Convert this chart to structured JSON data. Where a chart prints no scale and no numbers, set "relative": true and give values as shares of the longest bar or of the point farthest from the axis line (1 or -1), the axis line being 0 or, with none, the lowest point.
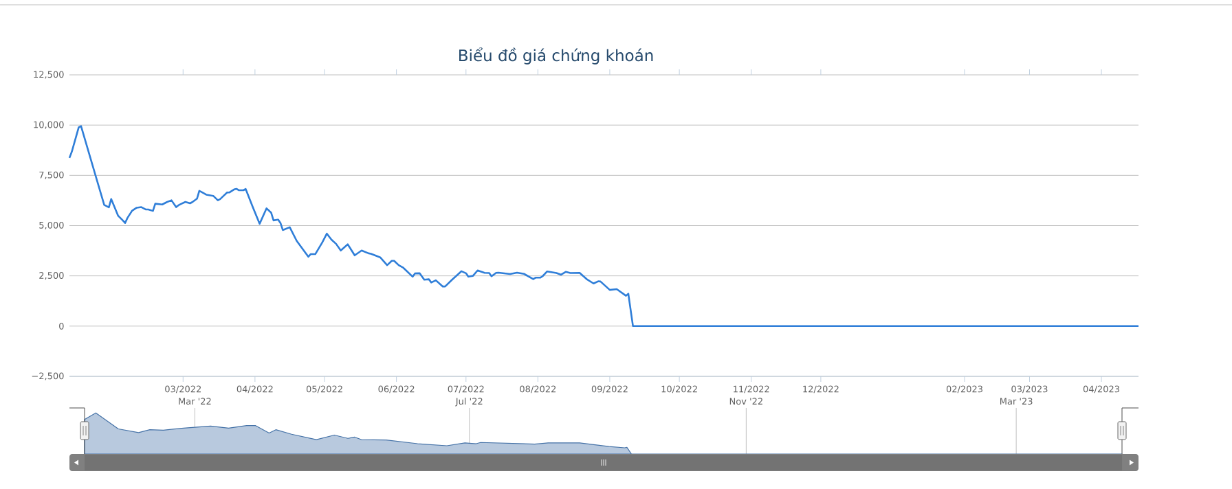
{
  "chart_data": [
    {
      "type": "line",
      "title": "Biểu đồ giá chứng khoán",
      "x": [
        "2022-01-11",
        "2022-01-12",
        "2022-01-15",
        "2022-01-16",
        "2022-01-22",
        "2022-01-26",
        "2022-01-28",
        "2022-01-29",
        "2022-02-01",
        "2022-02-03",
        "2022-02-04",
        "2022-02-05",
        "2022-02-07",
        "2022-02-09",
        "2022-02-11",
        "2022-02-13",
        "2022-02-14",
        "2022-02-16",
        "2022-02-17",
        "2022-02-20",
        "2022-02-22",
        "2022-02-24",
        "2022-02-26",
        "2022-02-27",
        "2022-02-28",
        "2022-03-02",
        "2022-03-04",
        "2022-03-05",
        "2022-03-07",
        "2022-03-08",
        "2022-03-09",
        "2022-03-11",
        "2022-03-14",
        "2022-03-16",
        "2022-03-17",
        "2022-03-18",
        "2022-03-20",
        "2022-03-21",
        "2022-03-23",
        "2022-03-24",
        "2022-03-25",
        "2022-03-27",
        "2022-03-28",
        "2022-03-31",
        "2022-04-03",
        "2022-04-06",
        "2022-04-08",
        "2022-04-09",
        "2022-04-11",
        "2022-04-12",
        "2022-04-13",
        "2022-04-16",
        "2022-04-19",
        "2022-04-24",
        "2022-04-25",
        "2022-04-27",
        "2022-04-30",
        "2022-05-02",
        "2022-05-04",
        "2022-05-06",
        "2022-05-08",
        "2022-05-11",
        "2022-05-14",
        "2022-05-17",
        "2022-05-20",
        "2022-05-21",
        "2022-05-25",
        "2022-05-28",
        "2022-05-30",
        "2022-05-31",
        "2022-06-02",
        "2022-06-04",
        "2022-06-08",
        "2022-06-09",
        "2022-06-11",
        "2022-06-13",
        "2022-06-15",
        "2022-06-16",
        "2022-06-18",
        "2022-06-21",
        "2022-06-22",
        "2022-06-25",
        "2022-06-29",
        "2022-07-01",
        "2022-07-02",
        "2022-07-04",
        "2022-07-06",
        "2022-07-09",
        "2022-07-11",
        "2022-07-12",
        "2022-07-14",
        "2022-07-15",
        "2022-07-20",
        "2022-07-23",
        "2022-07-26",
        "2022-07-30",
        "2022-07-31",
        "2022-08-02",
        "2022-08-03",
        "2022-08-05",
        "2022-08-09",
        "2022-08-11",
        "2022-08-13",
        "2022-08-15",
        "2022-08-19",
        "2022-08-22",
        "2022-08-25",
        "2022-08-27",
        "2022-08-28",
        "2022-09-01",
        "2022-09-04",
        "2022-09-08",
        "2022-09-09",
        "2022-09-11",
        "2023-04-17"
      ],
      "series": [
        {
          "color": "#2f7ed8",
          "values": [
            8370,
            8670,
            9890,
            9950,
            7590,
            6030,
            5910,
            6320,
            5490,
            5260,
            5130,
            5380,
            5740,
            5890,
            5920,
            5800,
            5800,
            5730,
            6090,
            6050,
            6170,
            6260,
            5920,
            6010,
            6070,
            6180,
            6110,
            6170,
            6340,
            6730,
            6670,
            6540,
            6480,
            6260,
            6320,
            6430,
            6650,
            6650,
            6800,
            6830,
            6760,
            6760,
            6820,
            5940,
            5090,
            5860,
            5640,
            5260,
            5300,
            5130,
            4780,
            4920,
            4240,
            3450,
            3580,
            3580,
            4160,
            4600,
            4300,
            4090,
            3760,
            4070,
            3520,
            3760,
            3620,
            3600,
            3420,
            3030,
            3250,
            3250,
            3030,
            2900,
            2460,
            2620,
            2630,
            2310,
            2330,
            2170,
            2280,
            1970,
            1970,
            2310,
            2730,
            2630,
            2460,
            2500,
            2770,
            2650,
            2640,
            2480,
            2650,
            2660,
            2590,
            2660,
            2600,
            2340,
            2410,
            2410,
            2480,
            2720,
            2640,
            2560,
            2700,
            2640,
            2650,
            2340,
            2120,
            2230,
            2220,
            1800,
            1840,
            1510,
            1610,
            0,
            0
          ]
        }
      ],
      "xlim": [
        "2022-01-11",
        "2023-04-17"
      ],
      "xticks": [
        {
          "value": "2022-03-01",
          "label": "03/2022"
        },
        {
          "value": "2022-04-01",
          "label": "04/2022"
        },
        {
          "value": "2022-05-01",
          "label": "05/2022"
        },
        {
          "value": "2022-06-01",
          "label": "06/2022"
        },
        {
          "value": "2022-07-01",
          "label": "07/2022"
        },
        {
          "value": "2022-08-01",
          "label": "08/2022"
        },
        {
          "value": "2022-09-01",
          "label": "09/2022"
        },
        {
          "value": "2022-10-01",
          "label": "10/2022"
        },
        {
          "value": "2022-11-01",
          "label": "11/2022"
        },
        {
          "value": "2022-12-01",
          "label": "12/2022"
        },
        {
          "value": "2023-02-01",
          "label": "02/2023"
        },
        {
          "value": "2023-03-01",
          "label": "03/2023"
        },
        {
          "value": "2023-04-01",
          "label": "04/2023"
        }
      ],
      "ylim": [
        -2500,
        12500
      ],
      "yticks": [
        {
          "value": -2500,
          "label": "−2,500"
        },
        {
          "value": 0,
          "label": "0"
        },
        {
          "value": 2500,
          "label": "2,500"
        },
        {
          "value": 5000,
          "label": "5,000"
        },
        {
          "value": 7500,
          "label": "7,500"
        },
        {
          "value": 10000,
          "label": "10,000"
        },
        {
          "value": 12500,
          "label": "12,500"
        }
      ],
      "grid": "y"
    },
    {
      "type": "area",
      "relative": true,
      "x": [
        "2022-01-11",
        "2022-01-16",
        "2022-01-26",
        "2022-02-04",
        "2022-02-09",
        "2022-02-15",
        "2022-02-24",
        "2022-03-08",
        "2022-03-16",
        "2022-03-24",
        "2022-03-28",
        "2022-04-03",
        "2022-04-06",
        "2022-04-13",
        "2022-04-24",
        "2022-05-02",
        "2022-05-08",
        "2022-05-11",
        "2022-05-14",
        "2022-05-25",
        "2022-06-08",
        "2022-06-21",
        "2022-06-29",
        "2022-07-04",
        "2022-07-06",
        "2022-07-30",
        "2022-08-05",
        "2022-08-19",
        "2022-09-01",
        "2022-09-08",
        "2022-09-09",
        "2022-09-11",
        "2023-04-17"
      ],
      "series": [
        {
          "color": "#4572a7",
          "values": [
            0.84,
            1,
            0.61,
            0.52,
            0.59,
            0.58,
            0.63,
            0.68,
            0.63,
            0.69,
            0.69,
            0.51,
            0.59,
            0.48,
            0.35,
            0.46,
            0.38,
            0.41,
            0.35,
            0.34,
            0.25,
            0.2,
            0.27,
            0.25,
            0.28,
            0.24,
            0.27,
            0.27,
            0.18,
            0.15,
            0.16,
            0,
            0
          ]
        }
      ],
      "xlim": [
        "2022-01-11",
        "2023-04-17"
      ],
      "xticks": [
        {
          "value": "2022-03-01",
          "label": "Mar '22"
        },
        {
          "value": "2022-07-01",
          "label": "Jul '22"
        },
        {
          "value": "2022-11-01",
          "label": "Nov '22"
        },
        {
          "value": "2023-03-01",
          "label": "Mar '23"
        }
      ],
      "grid": "x",
      "tick_labels": "x"
    }
  ]
}
